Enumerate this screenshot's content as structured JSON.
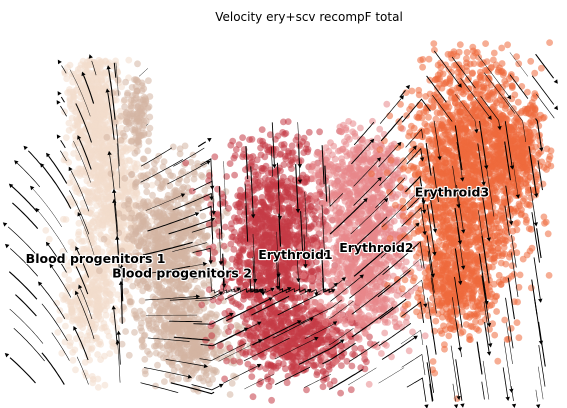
{
  "chart_data": {
    "type": "scatter",
    "title": "Velocity ery+scv recompF total",
    "xlabel": "",
    "ylabel": "",
    "grid": false,
    "legend": "none",
    "overlay": "velocity-streamlines",
    "clusters": [
      {
        "label": "Blood progenitors 1",
        "color": "#f3dccc",
        "centroid": [
          0.14,
          0.62
        ]
      },
      {
        "label": "Blood progenitors 2",
        "color": "#d4b4a3",
        "centroid": [
          0.3,
          0.66
        ]
      },
      {
        "label": "Erythroid1",
        "color": "#c43a45",
        "centroid": [
          0.51,
          0.61
        ]
      },
      {
        "label": "Erythroid2",
        "color": "#e8878a",
        "centroid": [
          0.66,
          0.59
        ]
      },
      {
        "label": "Erythroid3",
        "color": "#ef6a3c",
        "centroid": [
          0.8,
          0.44
        ]
      }
    ]
  }
}
